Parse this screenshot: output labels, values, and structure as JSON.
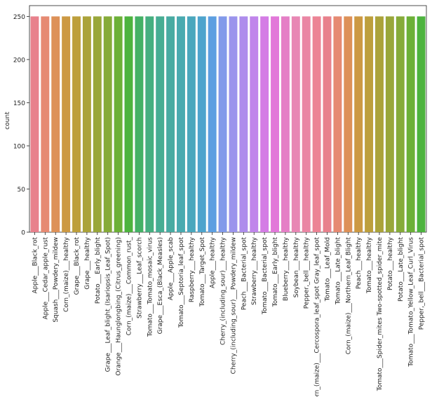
{
  "chart_data": {
    "type": "bar",
    "xlabel": "",
    "ylabel": "count",
    "ylim": [
      0,
      262.5
    ],
    "yticks": [
      0,
      50,
      100,
      150,
      200,
      250
    ],
    "grid": false,
    "legend": "none",
    "categories": [
      "Apple___Black_rot",
      "Apple___Cedar_apple_rust",
      "Squash___Powdery_mildew",
      "Corn_(maize)___healthy",
      "Grape___Black_rot",
      "Grape___healthy",
      "Potato___Early_blight",
      "Grape___Leaf_blight_(Isariopsis_Leaf_Spot)",
      "Orange___Haunglongbing_(Citrus_greening)",
      "Corn_(maize)___Common_rust_",
      "Strawberry___Leaf_scorch",
      "Tomato___Tomato_mosaic_virus",
      "Grape___Esca_(Black_Measles)",
      "Apple___Apple_scab",
      "Tomato___Septoria_leaf_spot",
      "Raspberry___healthy",
      "Tomato___Target_Spot",
      "Apple___healthy",
      "Cherry_(including_sour)___healthy",
      "Cherry_(including_sour)___Powdery_mildew",
      "Peach___Bacterial_spot",
      "Strawberry___healthy",
      "Tomato___Bacterial_spot",
      "Tomato___Early_blight",
      "Blueberry___healthy",
      "Soybean___healthy",
      "Pepper,_bell___healthy",
      "Corn_(maize)___Cercospora_leaf_spot Gray_leaf_spot",
      "Tomato___Leaf_Mold",
      "Tomato___Late_blight",
      "Corn_(maize)___Northern_Leaf_Blight",
      "Peach___healthy",
      "Tomato___healthy",
      "Tomato___Spider_mites Two-spotted_spider_mite",
      "Potato___healthy",
      "Potato___Late_blight",
      "Tomato___Tomato_Yellow_Leaf_Curl_Virus",
      "Pepper,_bell___Bacterial_spot"
    ],
    "values": [
      250,
      250,
      250,
      250,
      250,
      250,
      250,
      250,
      250,
      250,
      250,
      250,
      250,
      250,
      250,
      250,
      250,
      250,
      250,
      250,
      250,
      250,
      250,
      250,
      250,
      250,
      250,
      250,
      250,
      250,
      250,
      250,
      250,
      250,
      250,
      250,
      250,
      250
    ],
    "colors": [
      "#e8818c",
      "#e68a72",
      "#dd9158",
      "#cc9943",
      "#bd9f3c",
      "#aba33a",
      "#99a73a",
      "#86ab39",
      "#6cb037",
      "#4db33e",
      "#44b165",
      "#46af80",
      "#47ad93",
      "#48aba2",
      "#49aab0",
      "#4aa7bd",
      "#4ea4cd",
      "#5d9fe1",
      "#829aea",
      "#9b94ec",
      "#ae8dec",
      "#c085eb",
      "#d47ce5",
      "#e278d9",
      "#e57fc6",
      "#e887b4",
      "#ea86a4",
      "#ec8495",
      "#e8818c",
      "#e68a72",
      "#dd9158",
      "#cc9943",
      "#bd9f3c",
      "#aba33a",
      "#99a73a",
      "#86ab39",
      "#6cb037",
      "#4db33e"
    ]
  }
}
